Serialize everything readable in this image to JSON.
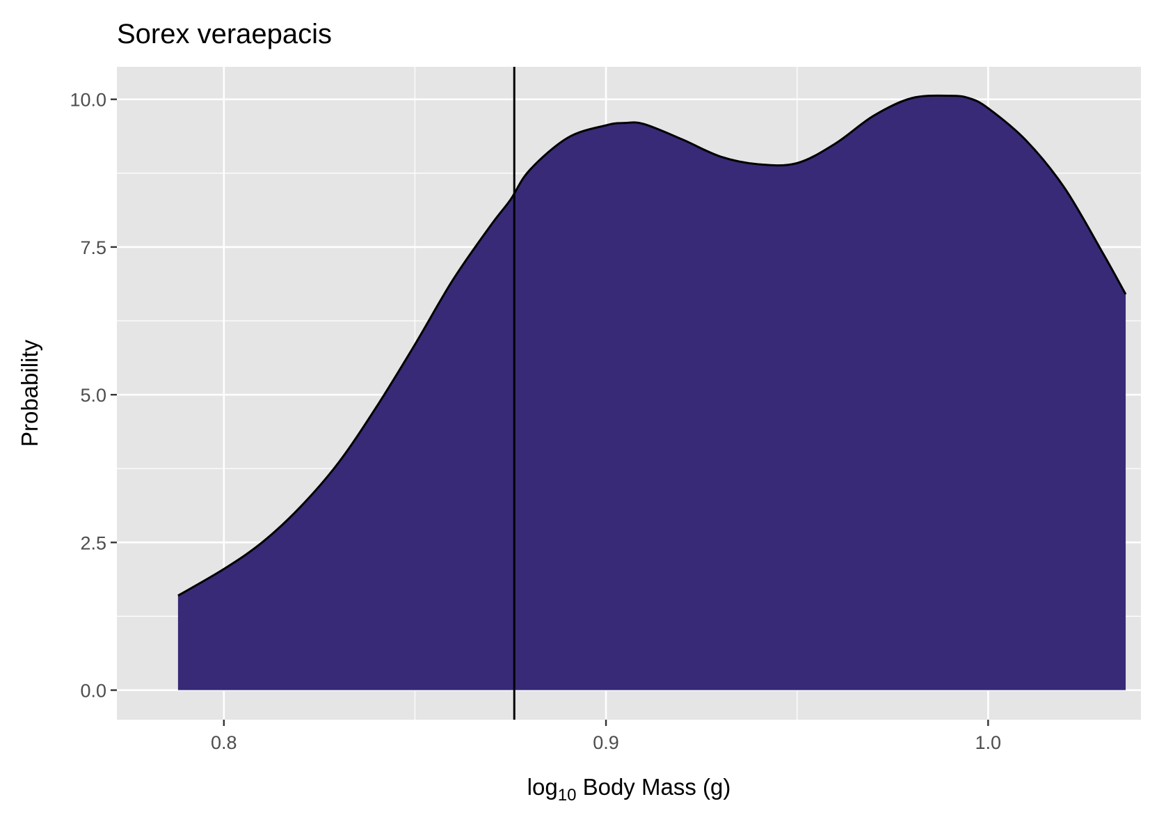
{
  "chart_data": {
    "type": "area",
    "title": "Sorex veraepacis",
    "xlabel_main": "log",
    "xlabel_sub": "10",
    "xlabel_rest": " Body Mass (g)",
    "ylabel": "Probability",
    "xlim": [
      0.772,
      1.04
    ],
    "ylim": [
      -0.5,
      10.55
    ],
    "x_ticks": [
      0.8,
      0.9,
      1.0
    ],
    "x_tick_labels": [
      "0.8",
      "0.9",
      "1.0"
    ],
    "x_minor_ticks": [
      0.85,
      0.95
    ],
    "y_ticks": [
      0,
      2.5,
      5,
      7.5,
      10
    ],
    "y_tick_labels": [
      "0.0",
      "2.5",
      "5.0",
      "7.5",
      "10.0"
    ],
    "y_minor_ticks": [
      1.25,
      3.75,
      6.25,
      8.75
    ],
    "density": {
      "x": [
        0.788,
        0.8,
        0.81,
        0.82,
        0.83,
        0.84,
        0.85,
        0.86,
        0.87,
        0.875,
        0.88,
        0.89,
        0.9,
        0.905,
        0.91,
        0.92,
        0.93,
        0.94,
        0.95,
        0.96,
        0.97,
        0.98,
        0.99,
        0.995,
        1.0,
        1.01,
        1.02,
        1.03,
        1.036
      ],
      "y": [
        1.6,
        2.05,
        2.5,
        3.1,
        3.85,
        4.8,
        5.85,
        6.95,
        7.88,
        8.3,
        8.8,
        9.35,
        9.56,
        9.6,
        9.58,
        9.32,
        9.03,
        8.9,
        8.92,
        9.25,
        9.72,
        10.02,
        10.06,
        10.02,
        9.85,
        9.3,
        8.5,
        7.4,
        6.7
      ]
    },
    "vline_x": 0.876,
    "colors": {
      "fill": "#382a77",
      "outline": "#000000",
      "panel_background": "#e5e5e5",
      "grid": "#ffffff",
      "vline": "#000000"
    },
    "grid": true,
    "legend": "none"
  }
}
